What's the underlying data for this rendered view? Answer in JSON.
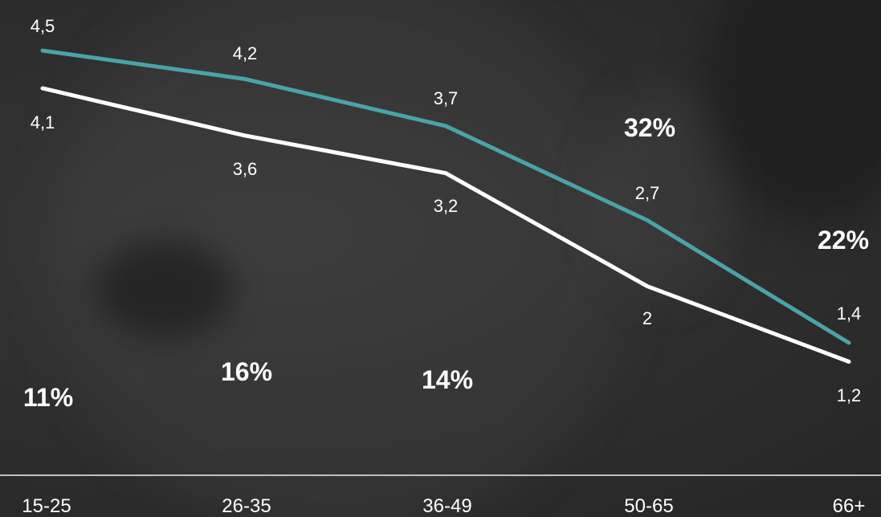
{
  "chart_data": {
    "type": "line",
    "categories": [
      "15-25",
      "26-35",
      "36-49",
      "50-65",
      "66+"
    ],
    "series": [
      {
        "values": [
          4.5,
          4.2,
          3.7,
          2.7,
          1.4
        ],
        "labels": [
          "4,5",
          "4,2",
          "3,7",
          "2,7",
          "1,4"
        ],
        "color": "#4aa3a8"
      },
      {
        "values": [
          4.1,
          3.6,
          3.2,
          2.0,
          1.2
        ],
        "labels": [
          "4,1",
          "3,6",
          "3,2",
          "2",
          "1,2"
        ],
        "color": "#ffffff"
      }
    ],
    "percentages": [
      "11%",
      "16%",
      "14%",
      "32%",
      "22%"
    ],
    "title": "",
    "xlabel": "",
    "ylabel": "",
    "ylim": [
      0,
      5
    ],
    "grid": false,
    "axis_line_color": "#bfbfbf"
  }
}
